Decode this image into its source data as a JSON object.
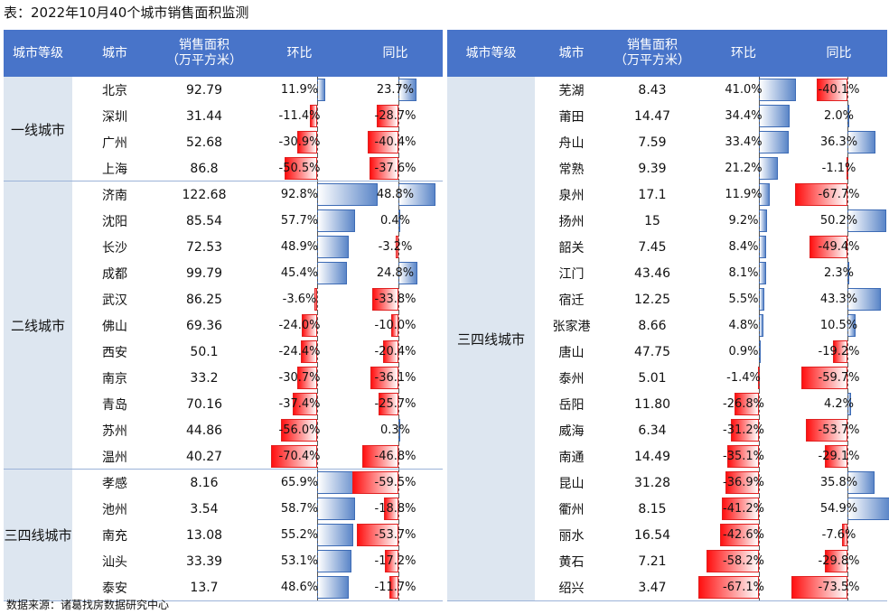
{
  "title": "表：2022年10月40个城市销售面积监测",
  "source": "数据来源：诸葛找房数据研究中心",
  "headers": {
    "tier": "城市等级",
    "city": "城市",
    "area": "销售面积\n（万平方米）",
    "mom": "环比",
    "yoy": "同比"
  },
  "colors": {
    "header_bg": "#4874c9",
    "group_bg": "#dde6f0",
    "positive_bar": "#5b86c8",
    "negative_bar": "#ff1010"
  },
  "left_table": {
    "groups": [
      {
        "tier": "一线城市",
        "rows": [
          {
            "city": "北京",
            "area": "92.79",
            "mom": "11.9%",
            "mom_value": 11.9,
            "yoy": "23.7%",
            "yoy_value": 23.7
          },
          {
            "city": "深圳",
            "area": "31.44",
            "mom": "-11.4%",
            "mom_value": -11.4,
            "yoy": "-28.7%",
            "yoy_value": -28.7
          },
          {
            "city": "广州",
            "area": "52.68",
            "mom": "-30.9%",
            "mom_value": -30.9,
            "yoy": "-40.4%",
            "yoy_value": -40.4
          },
          {
            "city": "上海",
            "area": "86.8",
            "mom": "-50.5%",
            "mom_value": -50.5,
            "yoy": "-37.6%",
            "yoy_value": -37.6
          }
        ]
      },
      {
        "tier": "二线城市",
        "rows": [
          {
            "city": "济南",
            "area": "122.68",
            "mom": "92.8%",
            "mom_value": 92.8,
            "yoy": "48.8%",
            "yoy_value": 48.8
          },
          {
            "city": "沈阳",
            "area": "85.54",
            "mom": "57.7%",
            "mom_value": 57.7,
            "yoy": "0.4%",
            "yoy_value": 0.4
          },
          {
            "city": "长沙",
            "area": "72.53",
            "mom": "48.9%",
            "mom_value": 48.9,
            "yoy": "-3.2%",
            "yoy_value": -3.2
          },
          {
            "city": "成都",
            "area": "99.79",
            "mom": "45.4%",
            "mom_value": 45.4,
            "yoy": "24.8%",
            "yoy_value": 24.8
          },
          {
            "city": "武汉",
            "area": "86.25",
            "mom": "-3.6%",
            "mom_value": -3.6,
            "yoy": "-33.8%",
            "yoy_value": -33.8
          },
          {
            "city": "佛山",
            "area": "69.36",
            "mom": "-24.0%",
            "mom_value": -24.0,
            "yoy": "-10.0%",
            "yoy_value": -10.0
          },
          {
            "city": "西安",
            "area": "50.1",
            "mom": "-24.4%",
            "mom_value": -24.4,
            "yoy": "-20.4%",
            "yoy_value": -20.4
          },
          {
            "city": "南京",
            "area": "33.2",
            "mom": "-30.7%",
            "mom_value": -30.7,
            "yoy": "-36.1%",
            "yoy_value": -36.1
          },
          {
            "city": "青岛",
            "area": "70.16",
            "mom": "-37.4%",
            "mom_value": -37.4,
            "yoy": "-25.7%",
            "yoy_value": -25.7
          },
          {
            "city": "苏州",
            "area": "44.86",
            "mom": "-56.0%",
            "mom_value": -56.0,
            "yoy": "0.3%",
            "yoy_value": 0.3
          },
          {
            "city": "温州",
            "area": "40.27",
            "mom": "-70.4%",
            "mom_value": -70.4,
            "yoy": "-46.8%",
            "yoy_value": -46.8
          }
        ]
      },
      {
        "tier": "三四线城市",
        "rows": [
          {
            "city": "孝感",
            "area": "8.16",
            "mom": "65.9%",
            "mom_value": 65.9,
            "yoy": "-59.5%",
            "yoy_value": -59.5
          },
          {
            "city": "池州",
            "area": "3.54",
            "mom": "58.7%",
            "mom_value": 58.7,
            "yoy": "-18.8%",
            "yoy_value": -18.8
          },
          {
            "city": "南充",
            "area": "13.08",
            "mom": "55.2%",
            "mom_value": 55.2,
            "yoy": "-53.7%",
            "yoy_value": -53.7
          },
          {
            "city": "汕头",
            "area": "33.39",
            "mom": "53.1%",
            "mom_value": 53.1,
            "yoy": "-17.2%",
            "yoy_value": -17.2
          },
          {
            "city": "泰安",
            "area": "13.7",
            "mom": "48.6%",
            "mom_value": 48.6,
            "yoy": "-11.7%",
            "yoy_value": -11.7
          }
        ]
      }
    ]
  },
  "right_table": {
    "groups": [
      {
        "tier": "三四线城市",
        "rows": [
          {
            "city": "芜湖",
            "area": "8.43",
            "mom": "41.0%",
            "mom_value": 41.0,
            "yoy": "-40.1%",
            "yoy_value": -40.1
          },
          {
            "city": "莆田",
            "area": "14.47",
            "mom": "34.4%",
            "mom_value": 34.4,
            "yoy": "2.0%",
            "yoy_value": 2.0
          },
          {
            "city": "舟山",
            "area": "7.59",
            "mom": "33.4%",
            "mom_value": 33.4,
            "yoy": "36.3%",
            "yoy_value": 36.3
          },
          {
            "city": "常熟",
            "area": "9.39",
            "mom": "21.2%",
            "mom_value": 21.2,
            "yoy": "-1.1%",
            "yoy_value": -1.1
          },
          {
            "city": "泉州",
            "area": "17.1",
            "mom": "11.9%",
            "mom_value": 11.9,
            "yoy": "-67.7%",
            "yoy_value": -67.7
          },
          {
            "city": "扬州",
            "area": "15",
            "mom": "9.2%",
            "mom_value": 9.2,
            "yoy": "50.2%",
            "yoy_value": 50.2
          },
          {
            "city": "韶关",
            "area": "7.45",
            "mom": "8.4%",
            "mom_value": 8.4,
            "yoy": "-49.4%",
            "yoy_value": -49.4
          },
          {
            "city": "江门",
            "area": "43.46",
            "mom": "8.1%",
            "mom_value": 8.1,
            "yoy": "2.3%",
            "yoy_value": 2.3
          },
          {
            "city": "宿迁",
            "area": "12.25",
            "mom": "5.5%",
            "mom_value": 5.5,
            "yoy": "43.3%",
            "yoy_value": 43.3
          },
          {
            "city": "张家港",
            "area": "8.66",
            "mom": "4.8%",
            "mom_value": 4.8,
            "yoy": "10.5%",
            "yoy_value": 10.5
          },
          {
            "city": "唐山",
            "area": "47.75",
            "mom": "0.9%",
            "mom_value": 0.9,
            "yoy": "-19.2%",
            "yoy_value": -19.2
          },
          {
            "city": "泰州",
            "area": "5.01",
            "mom": "-1.4%",
            "mom_value": -1.4,
            "yoy": "-59.7%",
            "yoy_value": -59.7
          },
          {
            "city": "岳阳",
            "area": "11.80",
            "mom": "-26.8%",
            "mom_value": -26.8,
            "yoy": "4.2%",
            "yoy_value": 4.2
          },
          {
            "city": "威海",
            "area": "6.34",
            "mom": "-31.2%",
            "mom_value": -31.2,
            "yoy": "-53.7%",
            "yoy_value": -53.7
          },
          {
            "city": "南通",
            "area": "14.49",
            "mom": "-35.1%",
            "mom_value": -35.1,
            "yoy": "-29.1%",
            "yoy_value": -29.1
          },
          {
            "city": "昆山",
            "area": "31.28",
            "mom": "-36.9%",
            "mom_value": -36.9,
            "yoy": "35.8%",
            "yoy_value": 35.8
          },
          {
            "city": "衢州",
            "area": "8.15",
            "mom": "-41.2%",
            "mom_value": -41.2,
            "yoy": "54.9%",
            "yoy_value": 54.9
          },
          {
            "city": "丽水",
            "area": "16.54",
            "mom": "-42.6%",
            "mom_value": -42.6,
            "yoy": "-7.6%",
            "yoy_value": -7.6
          },
          {
            "city": "黄石",
            "area": "7.21",
            "mom": "-58.2%",
            "mom_value": -58.2,
            "yoy": "-29.8%",
            "yoy_value": -29.8
          },
          {
            "city": "绍兴",
            "area": "3.47",
            "mom": "-67.1%",
            "mom_value": -67.1,
            "yoy": "-73.5%",
            "yoy_value": -73.5
          }
        ]
      }
    ]
  }
}
